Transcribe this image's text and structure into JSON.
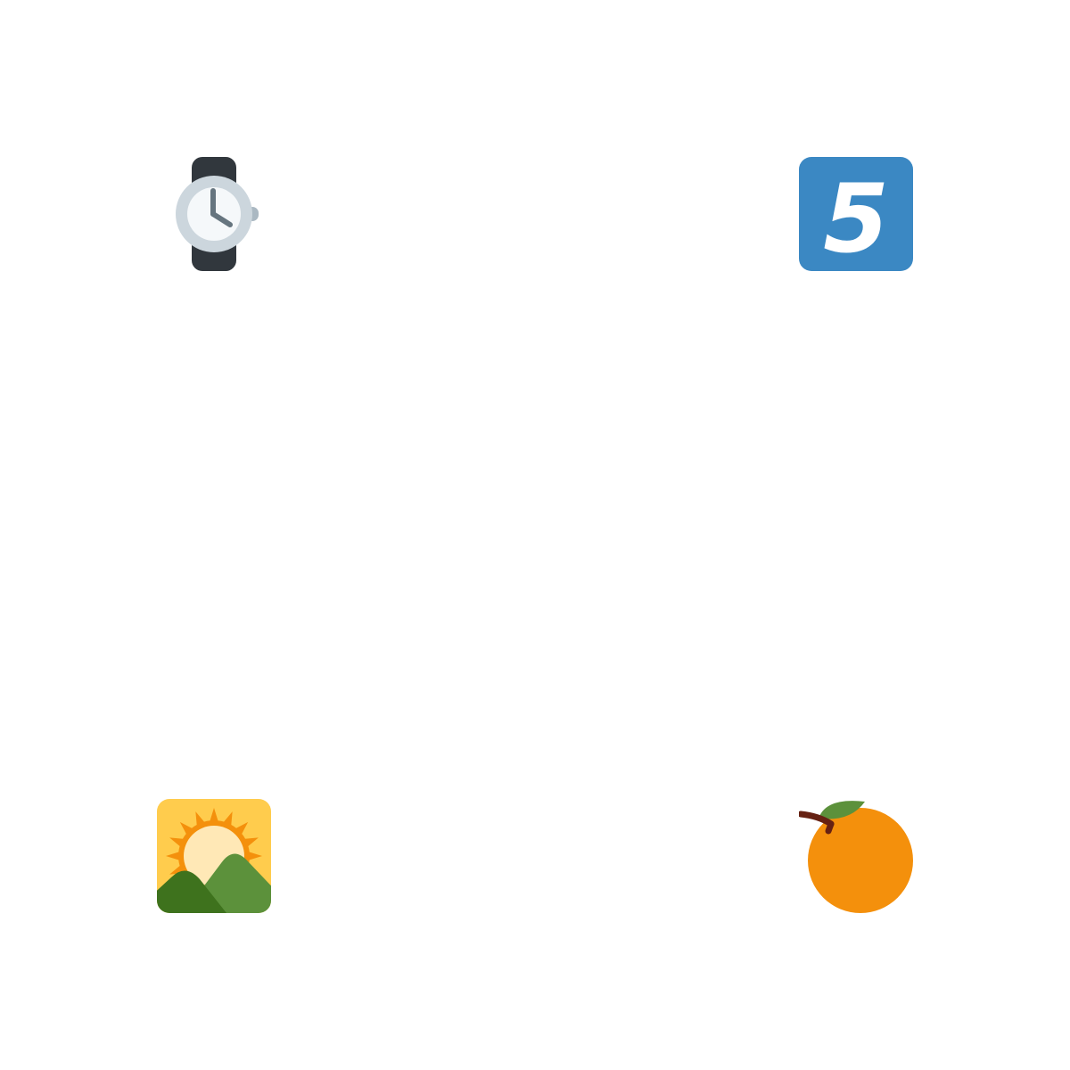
{
  "icons": [
    {
      "name": "watch-icon",
      "description_key": "watch"
    },
    {
      "name": "keycap-five-icon",
      "description_key": "keycap"
    },
    {
      "name": "sunrise-over-mountains-icon",
      "description_key": "sunrise"
    },
    {
      "name": "tangerine-icon",
      "description_key": "orange"
    }
  ],
  "keycap": {
    "digit": "5",
    "bg_color": "#3b88c3",
    "text_color": "#ffffff"
  },
  "colors": {
    "watch_band": "#31373d",
    "watch_bezel": "#ccd6dd",
    "watch_face": "#f5f8fa",
    "watch_hands": "#66757f",
    "sunrise_sky": "#ffcc4d",
    "sun_rays": "#f4900c",
    "sun_core": "#ffe8b6",
    "mountain_light": "#5c913b",
    "mountain_dark": "#3e721d",
    "orange_fruit": "#f4900c",
    "orange_leaf": "#5c913b",
    "orange_stem": "#662113"
  }
}
